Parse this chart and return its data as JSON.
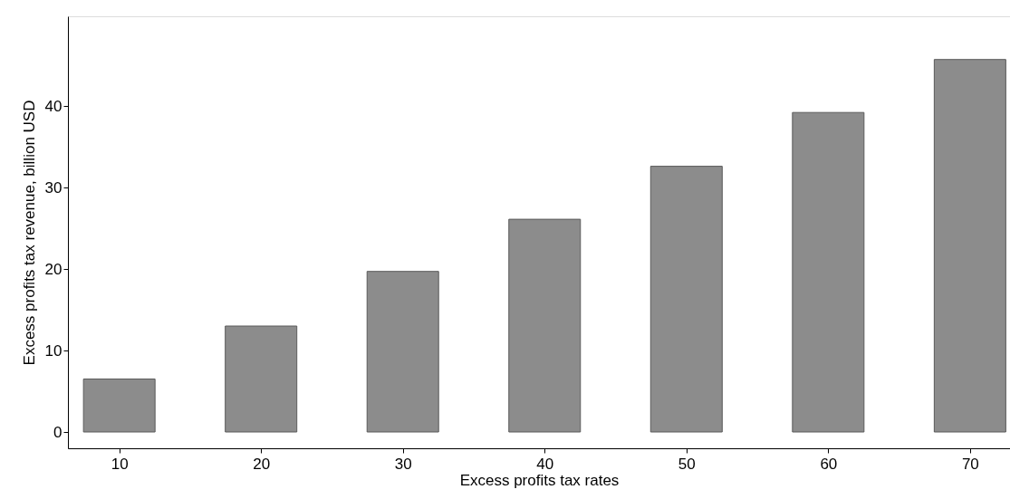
{
  "chart_data": {
    "type": "bar",
    "xlabel": "Excess profits tax rates",
    "ylabel": "Excess profits tax revenue, billion USD",
    "x": [
      10,
      20,
      30,
      40,
      50,
      60,
      70
    ],
    "values": [
      6.5,
      13.0,
      19.7,
      26.1,
      32.6,
      39.2,
      45.7
    ],
    "color": "#8c8c8c",
    "xlim": [
      6.7,
      72.5
    ],
    "xticks": [
      10,
      20,
      30,
      40,
      50,
      60,
      70
    ],
    "ylim": [
      -2,
      51
    ],
    "yticks": [
      0,
      10,
      20,
      30,
      40
    ],
    "grid": false
  }
}
